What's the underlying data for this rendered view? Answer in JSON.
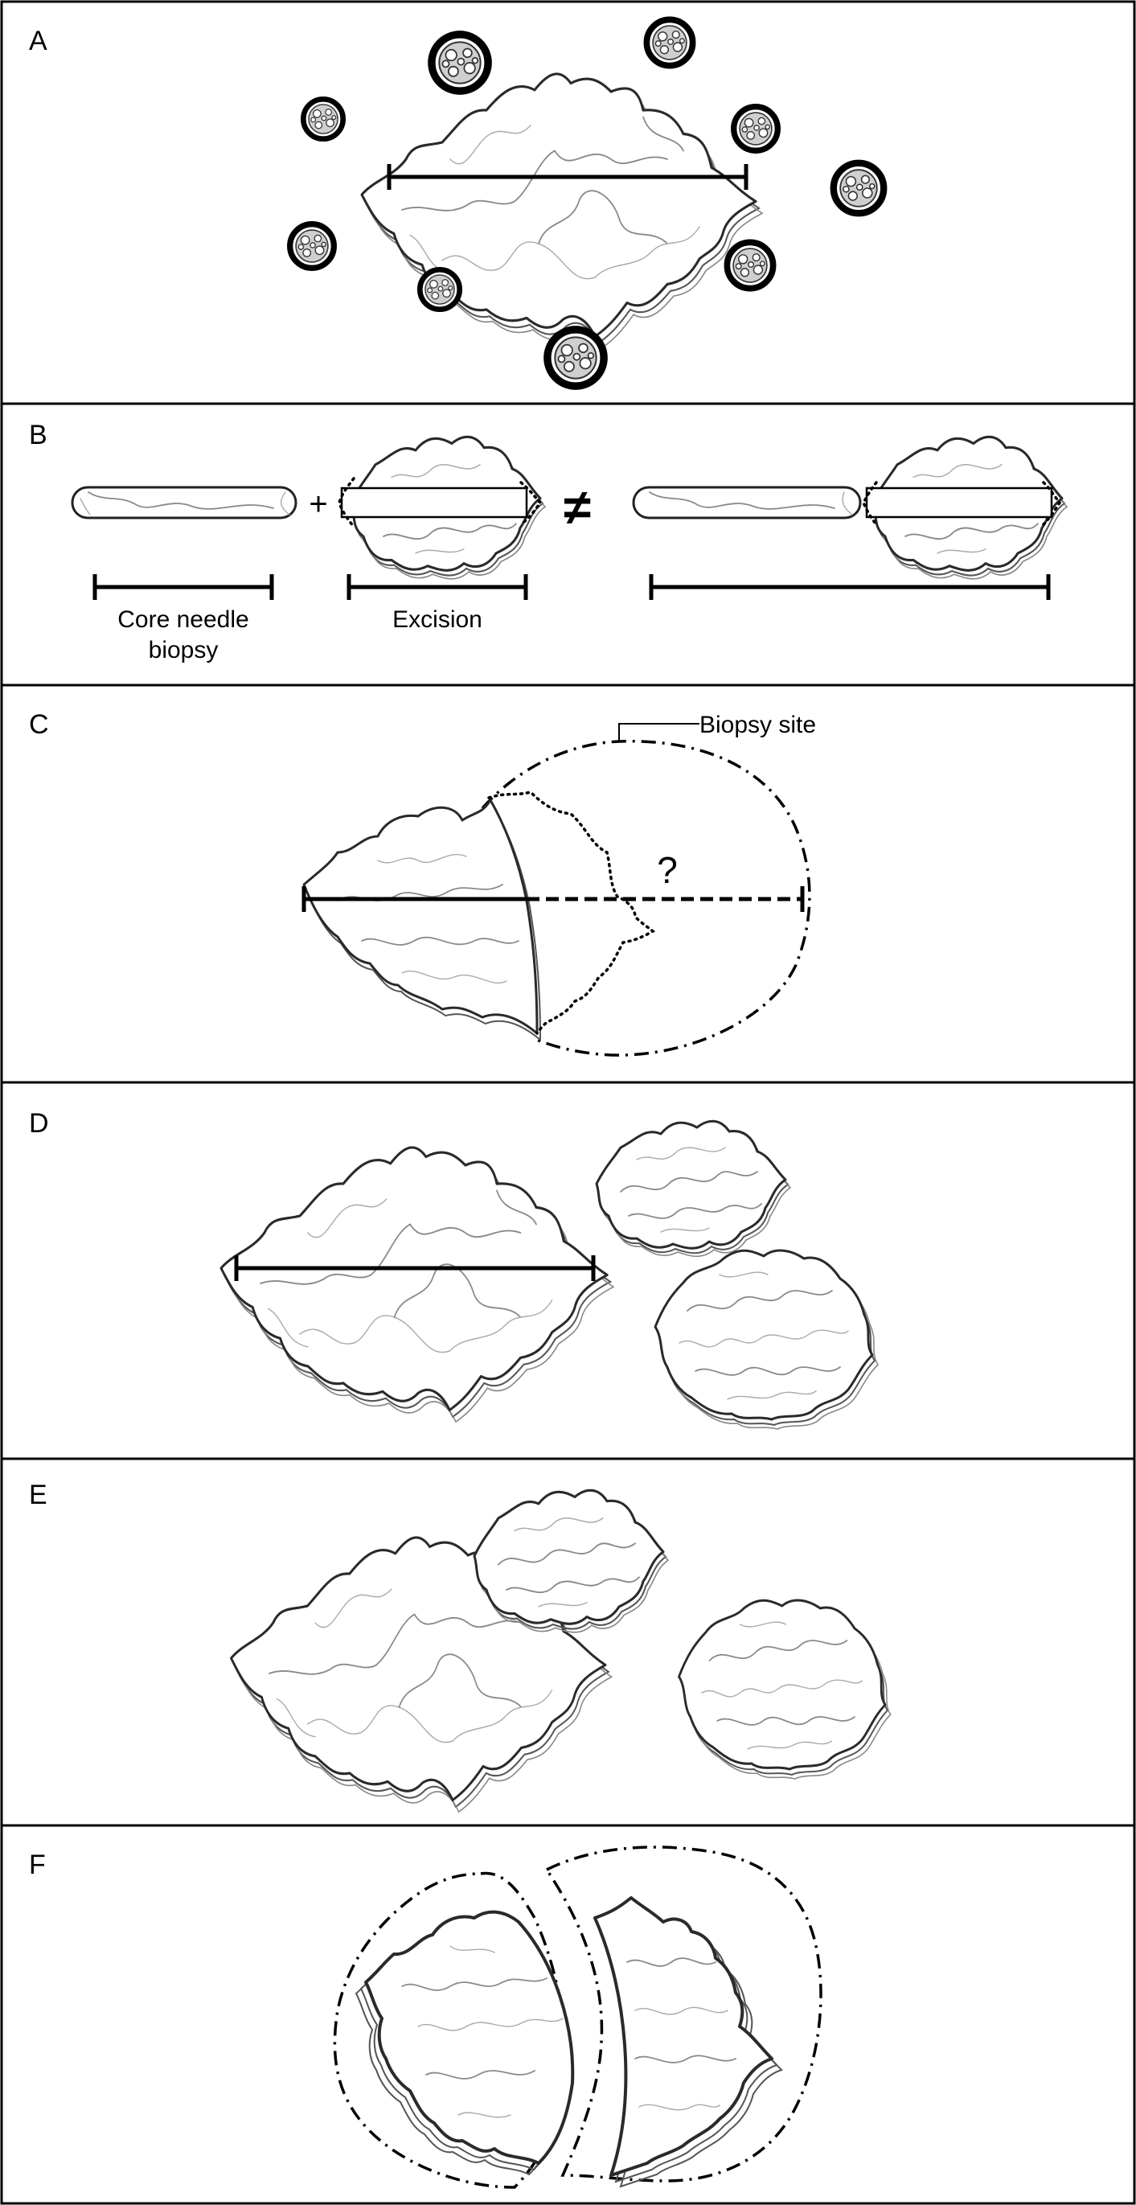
{
  "panels": [
    {
      "id": "A",
      "letter": "A"
    },
    {
      "id": "B",
      "letter": "B",
      "labels": {
        "core": "Core needle biopsy",
        "excision": "Excision",
        "plus": "+",
        "not_equal": "≠"
      }
    },
    {
      "id": "C",
      "letter": "C",
      "labels": {
        "biopsy_site": "Biopsy site",
        "question": "?"
      }
    },
    {
      "id": "D",
      "letter": "D"
    },
    {
      "id": "E",
      "letter": "E"
    },
    {
      "id": "F",
      "letter": "F"
    }
  ],
  "core_label_lines": [
    "Core needle",
    "biopsy"
  ]
}
